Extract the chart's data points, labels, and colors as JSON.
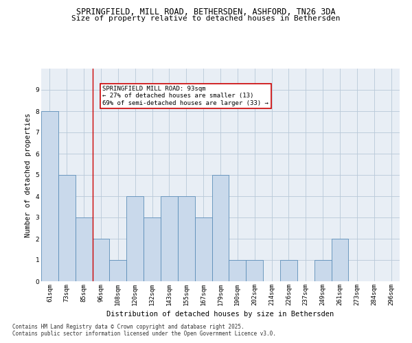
{
  "title1": "SPRINGFIELD, MILL ROAD, BETHERSDEN, ASHFORD, TN26 3DA",
  "title2": "Size of property relative to detached houses in Bethersden",
  "xlabel": "Distribution of detached houses by size in Bethersden",
  "ylabel": "Number of detached properties",
  "categories": [
    "61sqm",
    "73sqm",
    "85sqm",
    "96sqm",
    "108sqm",
    "120sqm",
    "132sqm",
    "143sqm",
    "155sqm",
    "167sqm",
    "179sqm",
    "190sqm",
    "202sqm",
    "214sqm",
    "226sqm",
    "237sqm",
    "249sqm",
    "261sqm",
    "273sqm",
    "284sqm",
    "296sqm"
  ],
  "values": [
    8,
    5,
    3,
    2,
    1,
    4,
    3,
    4,
    4,
    3,
    5,
    1,
    1,
    0,
    1,
    0,
    1,
    2,
    0,
    0,
    0
  ],
  "bar_color": "#c9d9eb",
  "bar_edge_color": "#5b8db8",
  "grid_color": "#b8c8d8",
  "bg_color": "#e8eef5",
  "vline_x_idx": 2.5,
  "annotation_text": "SPRINGFIELD MILL ROAD: 93sqm\n← 27% of detached houses are smaller (13)\n69% of semi-detached houses are larger (33) →",
  "annotation_box_color": "#ffffff",
  "annotation_box_edge": "#cc0000",
  "footer1": "Contains HM Land Registry data © Crown copyright and database right 2025.",
  "footer2": "Contains public sector information licensed under the Open Government Licence v3.0.",
  "ylim": [
    0,
    10
  ],
  "yticks": [
    0,
    1,
    2,
    3,
    4,
    5,
    6,
    7,
    8,
    9
  ],
  "title1_fontsize": 8.5,
  "title2_fontsize": 8.0,
  "tick_fontsize": 6.5,
  "ylabel_fontsize": 7.5,
  "xlabel_fontsize": 7.5,
  "annot_fontsize": 6.5,
  "footer_fontsize": 5.5
}
